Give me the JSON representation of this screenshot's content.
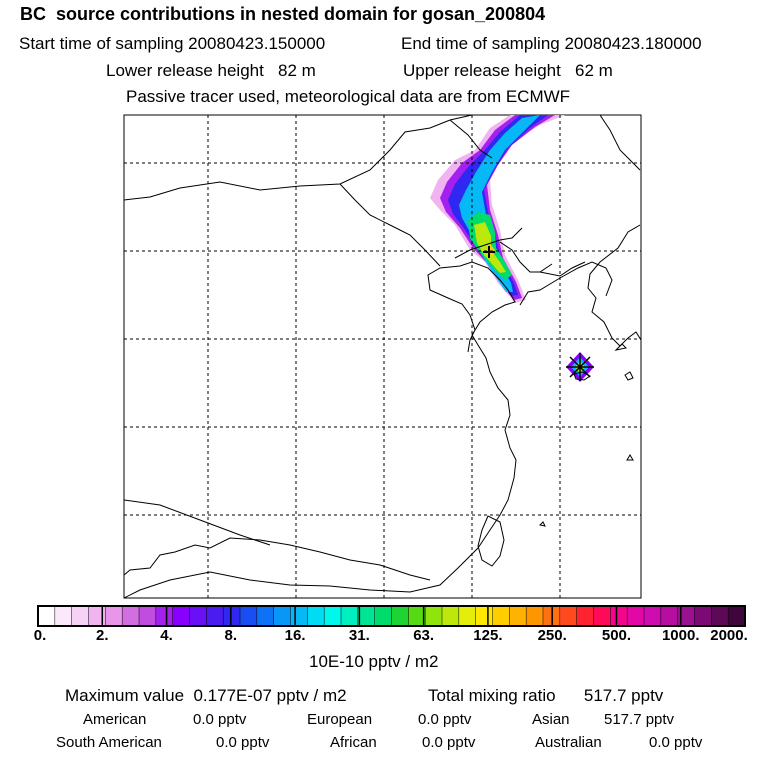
{
  "header": {
    "title": "BC  source contributions in nested domain for gosan_200804",
    "start_time": "Start time of sampling 20080423.150000",
    "end_time": "End time of sampling 20080423.180000",
    "lower_release": "Lower release height   82 m",
    "upper_release": "Upper release height   62 m",
    "tracer_info": "Passive tracer used, meteorological data are from ECMWF"
  },
  "colorbar": {
    "ticks": [
      "0.",
      "2.",
      "4.",
      "8.",
      "16.",
      "31.",
      "63.",
      "125.",
      "250.",
      "500.",
      "1000.",
      "2000."
    ],
    "unit": "10E-10 pptv / m2",
    "colors": [
      "#ffffff",
      "#fbe9fb",
      "#f6d2f6",
      "#f0b5f1",
      "#e796ea",
      "#d36ee0",
      "#c04ce0",
      "#a420ee",
      "#8a00ff",
      "#6a10f7",
      "#4a1cf0",
      "#2e28f0",
      "#1a4ef2",
      "#0e72f5",
      "#0896f7",
      "#06b8f6",
      "#00dcf4",
      "#00f7ec",
      "#00efc0",
      "#00e496",
      "#00dc6c",
      "#1ed434",
      "#56da14",
      "#8ee40c",
      "#bce80c",
      "#e4ee0a",
      "#ffe800",
      "#ffce00",
      "#ffb200",
      "#ff9600",
      "#ff7010",
      "#ff4a20",
      "#ff2230",
      "#ff0a58",
      "#f4068c",
      "#e208a6",
      "#cf0cb0",
      "#b50ea0",
      "#9a1090",
      "#7c0a74",
      "#5e0858",
      "#40063c"
    ]
  },
  "summary": {
    "max_value": "Maximum value  0.177E-07 pptv / m2",
    "total_mixing": "Total mixing ratio      517.7 pptv",
    "american_label": "American",
    "american_value": "0.0 pptv",
    "european_label": "European",
    "european_value": "0.0 pptv",
    "asian_label": "Asian",
    "asian_value": "517.7 pptv",
    "south_american_label": "South American",
    "south_american_value": "0.0 pptv",
    "african_label": "African",
    "african_value": "0.0 pptv",
    "australian_label": "Australian",
    "australian_value": "0.0 pptv"
  }
}
